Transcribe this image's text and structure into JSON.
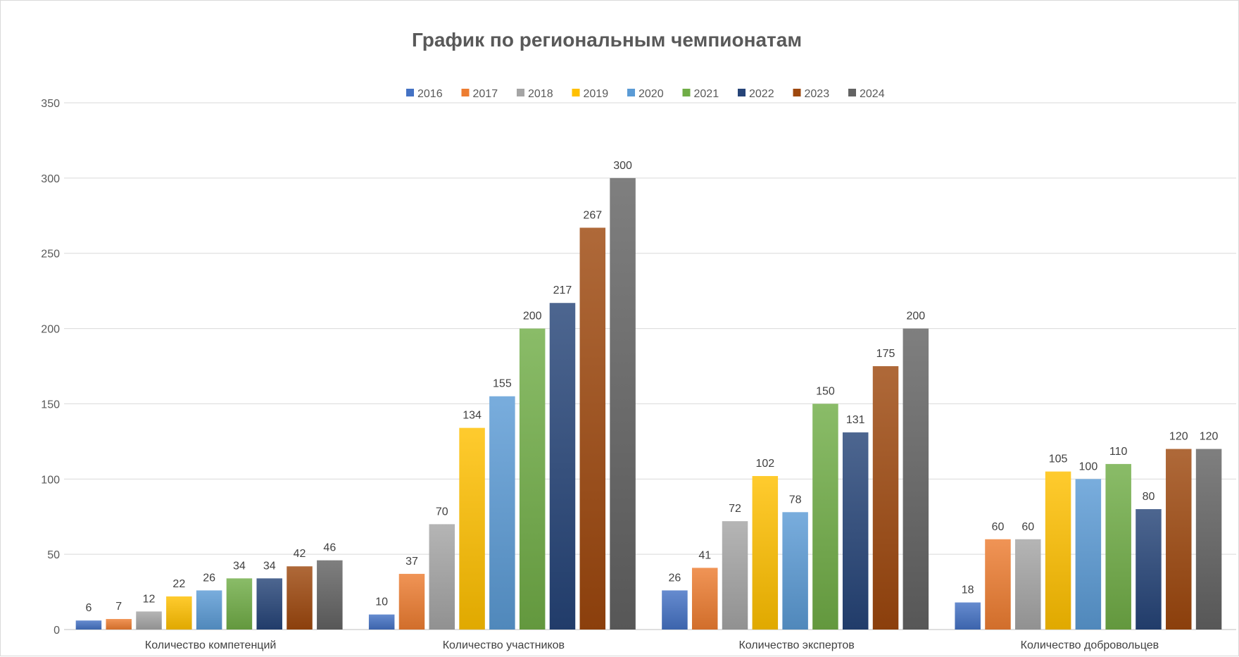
{
  "chart_data": {
    "type": "bar",
    "title": "График по региональным чемпионатам",
    "xlabel": "",
    "ylabel": "",
    "ylim": [
      0,
      350
    ],
    "yticks": [
      0,
      50,
      100,
      150,
      200,
      250,
      300,
      350
    ],
    "grid": true,
    "legend_position": "top",
    "categories": [
      "Количество компетенций",
      "Количество участников",
      "Количество экспертов",
      "Количество добровольцев"
    ],
    "series": [
      {
        "name": "2016",
        "color": "#4472c4",
        "values": [
          6,
          10,
          26,
          18
        ]
      },
      {
        "name": "2017",
        "color": "#ed7d31",
        "values": [
          7,
          37,
          41,
          60
        ]
      },
      {
        "name": "2018",
        "color": "#a5a5a5",
        "values": [
          12,
          70,
          72,
          60
        ]
      },
      {
        "name": "2019",
        "color": "#ffc000",
        "values": [
          22,
          134,
          102,
          105
        ]
      },
      {
        "name": "2020",
        "color": "#5b9bd5",
        "values": [
          26,
          155,
          78,
          100
        ]
      },
      {
        "name": "2021",
        "color": "#70ad47",
        "values": [
          34,
          200,
          150,
          110
        ]
      },
      {
        "name": "2022",
        "color": "#264478",
        "values": [
          34,
          217,
          131,
          80
        ]
      },
      {
        "name": "2023",
        "color": "#9e480e",
        "values": [
          42,
          267,
          175,
          120
        ]
      },
      {
        "name": "2024",
        "color": "#636363",
        "values": [
          46,
          300,
          200,
          120
        ]
      }
    ]
  }
}
